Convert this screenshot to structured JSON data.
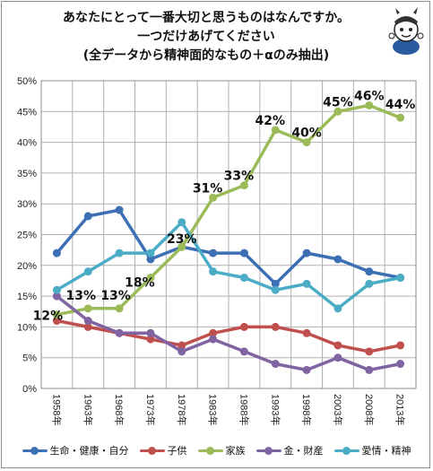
{
  "title_lines": [
    "あなたにとって一番大切と思うものはなんですか。",
    "一つだけあげてください",
    "(全データから精神面的なもの＋αのみ抽出)"
  ],
  "chart_data": {
    "type": "line",
    "x": [
      "1958年",
      "1963年",
      "1968年",
      "1973年",
      "1978年",
      "1983年",
      "1988年",
      "1993年",
      "1998年",
      "2003年",
      "2008年",
      "2013年"
    ],
    "ylim": [
      0,
      50
    ],
    "yticks": [
      "0%",
      "5%",
      "10%",
      "15%",
      "20%",
      "25%",
      "30%",
      "35%",
      "40%",
      "45%",
      "50%"
    ],
    "grid": true,
    "legend_position": "bottom",
    "series": [
      {
        "name": "生命・健康・自分",
        "color": "#3d6fb4",
        "values": [
          22,
          28,
          29,
          21,
          23,
          22,
          22,
          17,
          22,
          21,
          19,
          18
        ]
      },
      {
        "name": "子供",
        "color": "#c0504d",
        "values": [
          11,
          10,
          9,
          8,
          7,
          9,
          10,
          10,
          9,
          7,
          6,
          7
        ]
      },
      {
        "name": "家族",
        "color": "#9bbb59",
        "values": [
          12,
          13,
          13,
          18,
          23,
          31,
          33,
          42,
          40,
          45,
          46,
          44
        ]
      },
      {
        "name": "金・財産",
        "color": "#8064a2",
        "values": [
          15,
          11,
          9,
          9,
          6,
          8,
          6,
          4,
          3,
          5,
          3,
          4
        ]
      },
      {
        "name": "愛情・精神",
        "color": "#4bacc6",
        "values": [
          16,
          19,
          22,
          22,
          27,
          19,
          18,
          16,
          17,
          13,
          17,
          18
        ]
      }
    ],
    "annotations": [
      "12%",
      "13%",
      "13%",
      "18%",
      "23%",
      "31%",
      "33%",
      "42%",
      "40%",
      "45%",
      "46%",
      "44%"
    ]
  }
}
